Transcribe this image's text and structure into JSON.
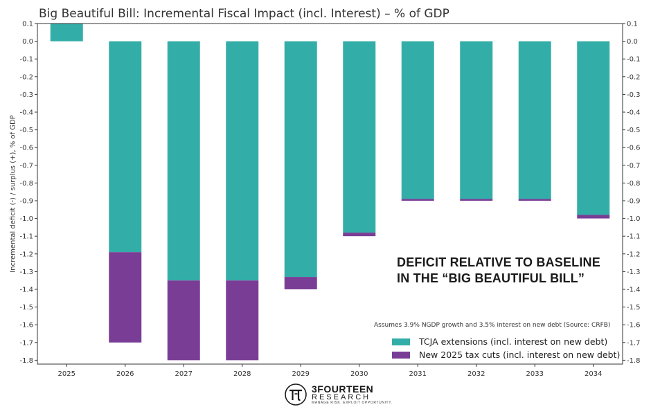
{
  "chart_data": {
    "type": "bar",
    "stacked": true,
    "title": "Big Beautiful Bill: Incremental Fiscal Impact (incl. Interest) – % of GDP",
    "xlabel": "",
    "ylabel": "Incremental deficit (-) / surplus (+), % of GDP",
    "ylim": [
      -1.82,
      0.1
    ],
    "yticks": [
      0.1,
      0.0,
      -0.1,
      -0.2,
      -0.3,
      -0.4,
      -0.5,
      -0.6,
      -0.7,
      -0.8,
      -0.9,
      -1.0,
      -1.1,
      -1.2,
      -1.3,
      -1.4,
      -1.5,
      -1.6,
      -1.7,
      -1.8
    ],
    "categories": [
      "2025",
      "2026",
      "2027",
      "2028",
      "2029",
      "2030",
      "2031",
      "2032",
      "2033",
      "2034"
    ],
    "series": [
      {
        "name": "TCJA extensions (incl. interest on new debt)",
        "color": "#33ada8",
        "values": [
          0.1,
          -1.19,
          -1.35,
          -1.35,
          -1.33,
          -1.08,
          -0.89,
          -0.89,
          -0.89,
          -0.98
        ]
      },
      {
        "name": "New 2025 tax cuts (incl. interest on new debt)",
        "color": "#7a3d96",
        "values": [
          0.0,
          -0.51,
          -0.45,
          -0.45,
          -0.07,
          -0.02,
          -0.01,
          -0.01,
          -0.01,
          -0.02
        ]
      }
    ],
    "grid": false,
    "legend": "bottom-right",
    "annotations": {
      "callout_line1": "DEFICIT RELATIVE TO BASELINE",
      "callout_line2": "IN THE “BIG BEAUTIFUL BILL”",
      "note": "Assumes 3.9% NGDP growth and 3.5% interest on new debt (Source: CRFB)"
    }
  },
  "logo": {
    "name": "3FOURTEEN",
    "sub": "RESEARCH",
    "tagline": "MANAGE RISK. EXPLOIT OPPORTUNITY.",
    "icon": "pi-circle-logo-icon"
  },
  "colors": {
    "frame": "#bdbdbd",
    "axis": "#333333"
  }
}
